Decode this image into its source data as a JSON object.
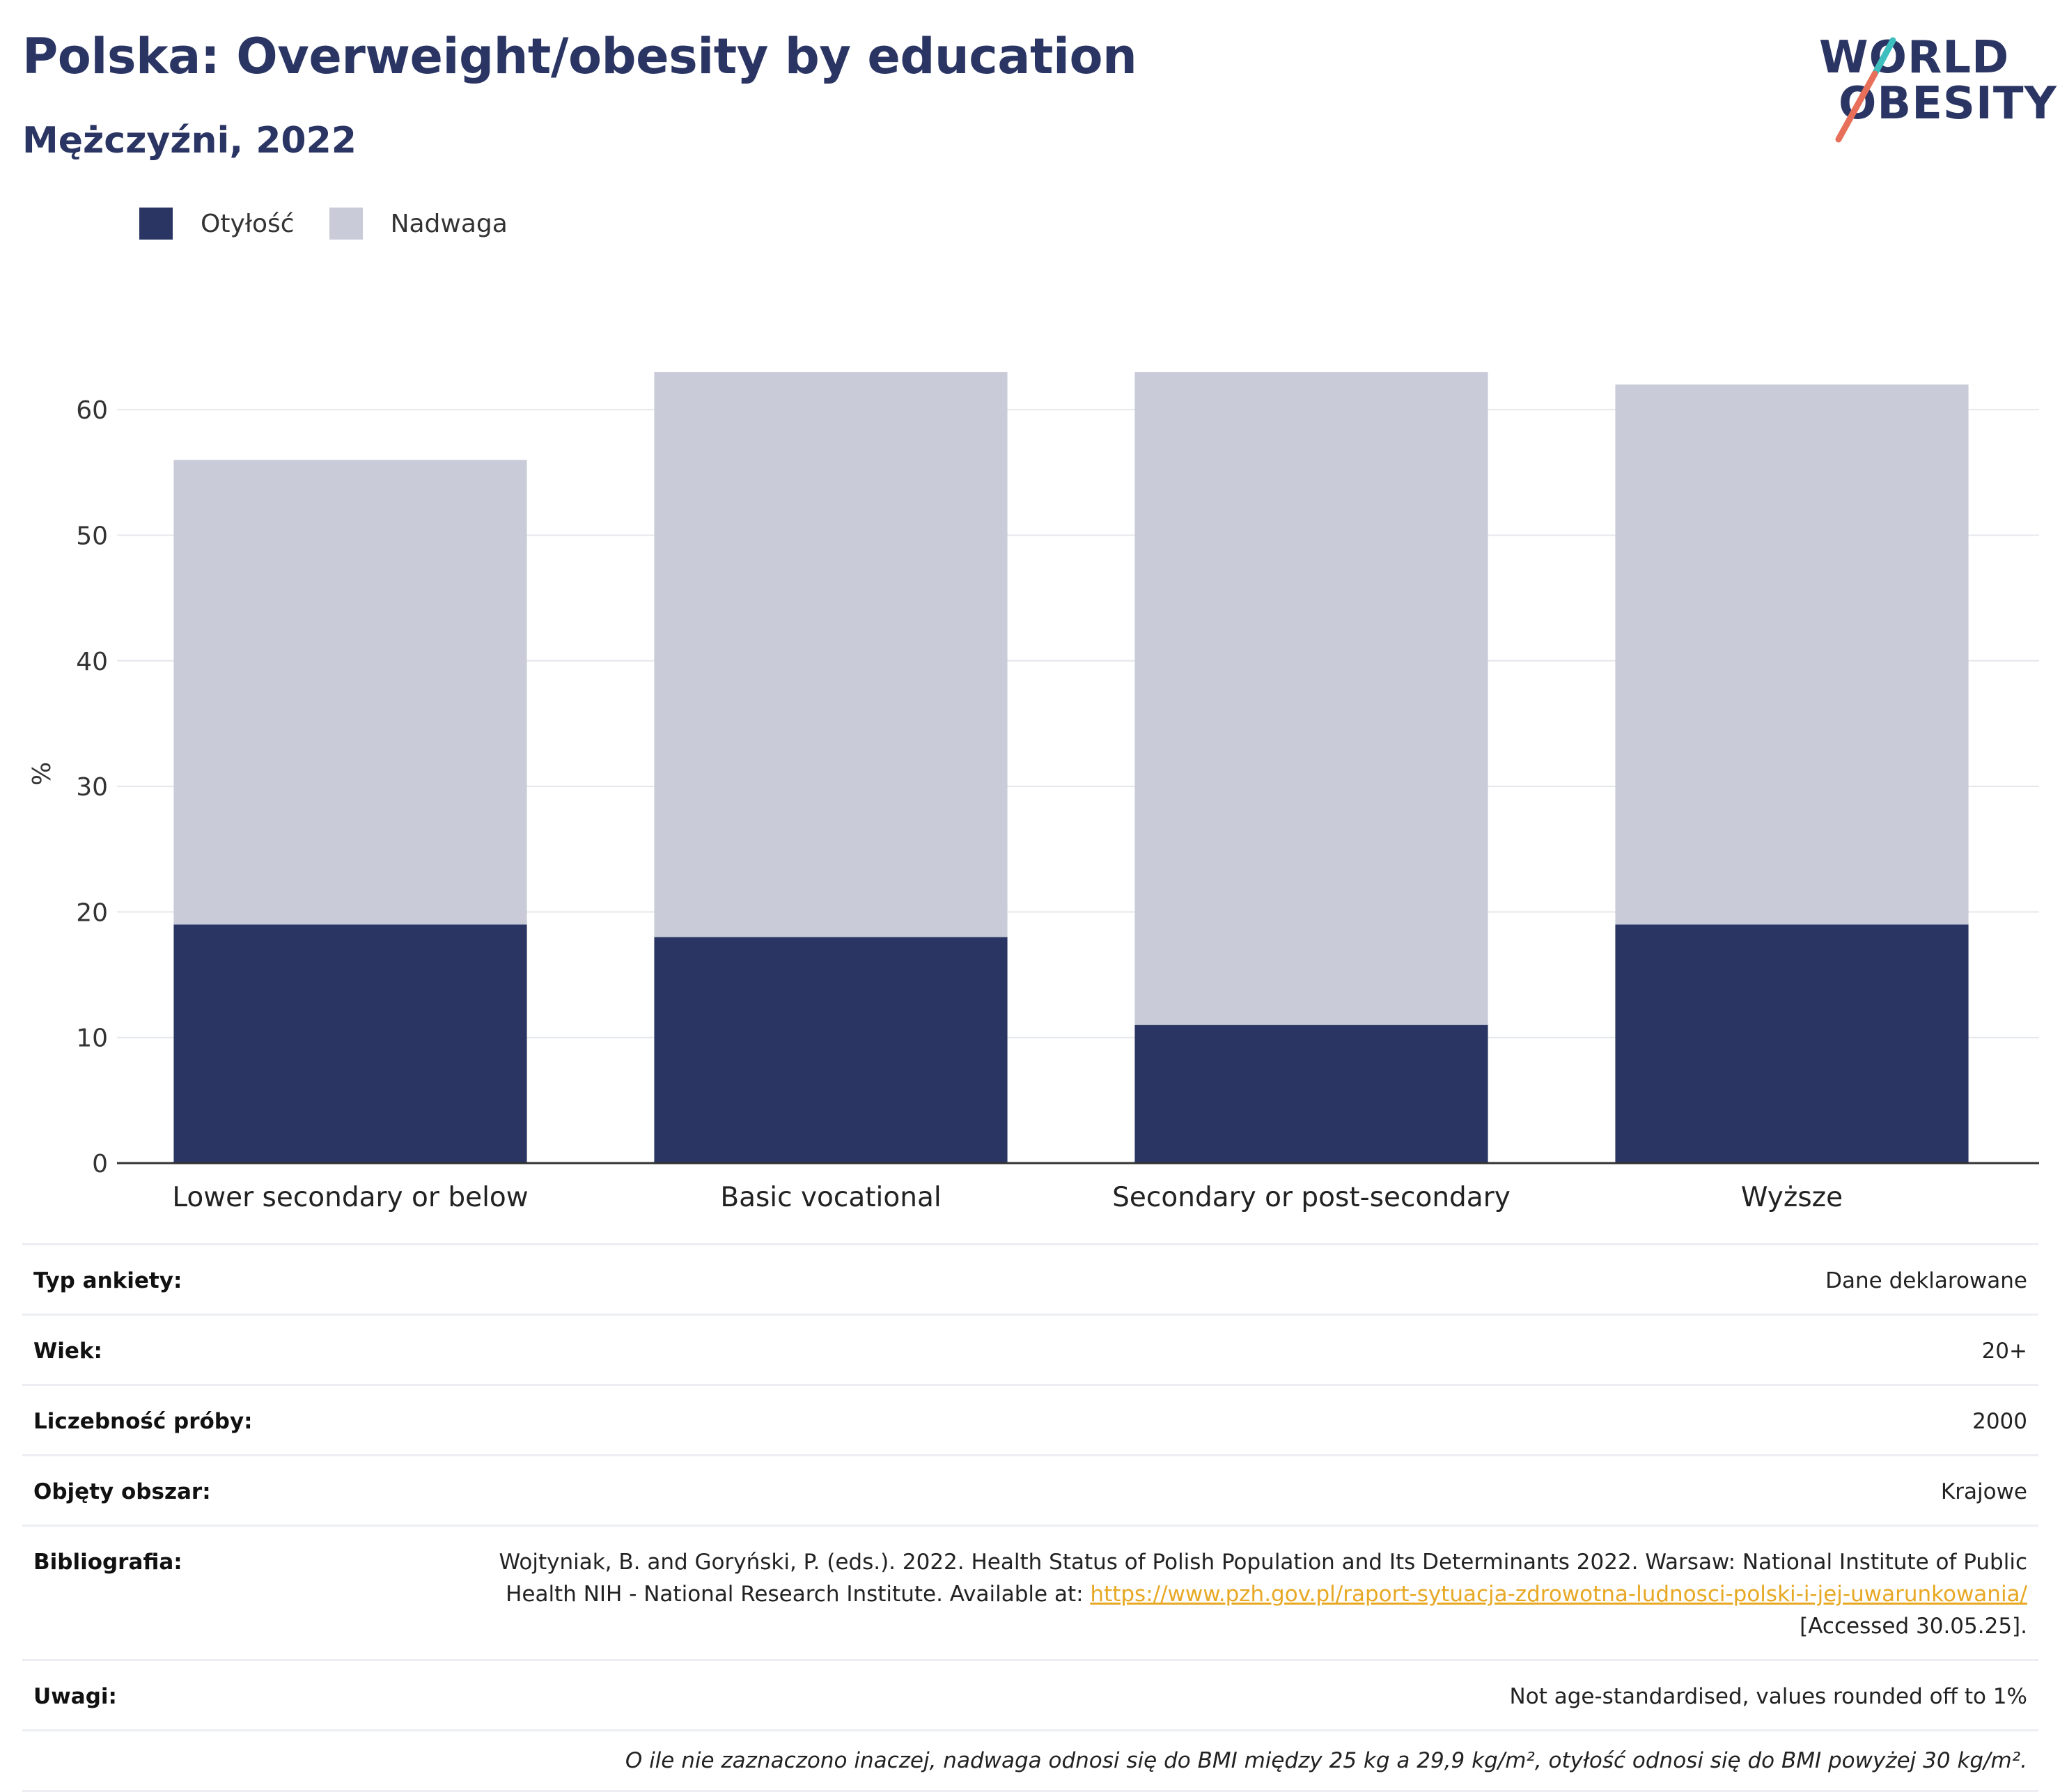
{
  "header": {
    "title": "Polska: Overweight/obesity by education",
    "subtitle": "Mężczyźni, 2022"
  },
  "logo": {
    "line1": "WORLD",
    "line2": "OBESITY"
  },
  "legend": [
    {
      "label": "Otyłość",
      "color": "#2a3563"
    },
    {
      "label": "Nadwaga",
      "color": "#c9ccd8"
    }
  ],
  "chart_data": {
    "type": "bar",
    "stacked": true,
    "categories": [
      "Lower secondary or below",
      "Basic vocational",
      "Secondary or post-secondary",
      "Wyższe"
    ],
    "series": [
      {
        "name": "Otyłość",
        "values": [
          19,
          18,
          11,
          19
        ],
        "color": "#2a3563"
      },
      {
        "name": "Nadwaga",
        "values": [
          37,
          45,
          52,
          43
        ],
        "color": "#c9ccd8"
      }
    ],
    "ylabel": "%",
    "ylim": [
      0,
      66
    ],
    "yticks": [
      0,
      10,
      20,
      30,
      40,
      50,
      60
    ],
    "grid": true,
    "legend_position": "top-left"
  },
  "info": {
    "rows": [
      {
        "key": "Typ ankiety:",
        "value": "Dane deklarowane"
      },
      {
        "key": "Wiek:",
        "value": "20+"
      },
      {
        "key": "Liczebność próby:",
        "value": "2000"
      },
      {
        "key": "Objęty obszar:",
        "value": "Krajowe"
      }
    ],
    "bibliography": {
      "key": "Bibliografia:",
      "text": "Wojtyniak, B. and Goryński, P. (eds.). 2022. Health Status of Polish Population and Its Determinants 2022. Warsaw: National Institute of Public Health NIH - National Research Institute. Available at: ",
      "link": "https://www.pzh.gov.pl/raport-sytuacja-zdrowotna-ludnosci-polski-i-jej-uwarunkowania/",
      "suffix": " [Accessed 30.05.25]."
    },
    "notes": {
      "key": "Uwagi:",
      "value": "Not age-standardised, values rounded off to 1%"
    },
    "footnote": "O ile nie zaznaczono inaczej, nadwaga odnosi się do BMI między 25 kg a 29,9 kg/m², otyłość odnosi się do BMI powyżej 30 kg/m²."
  }
}
